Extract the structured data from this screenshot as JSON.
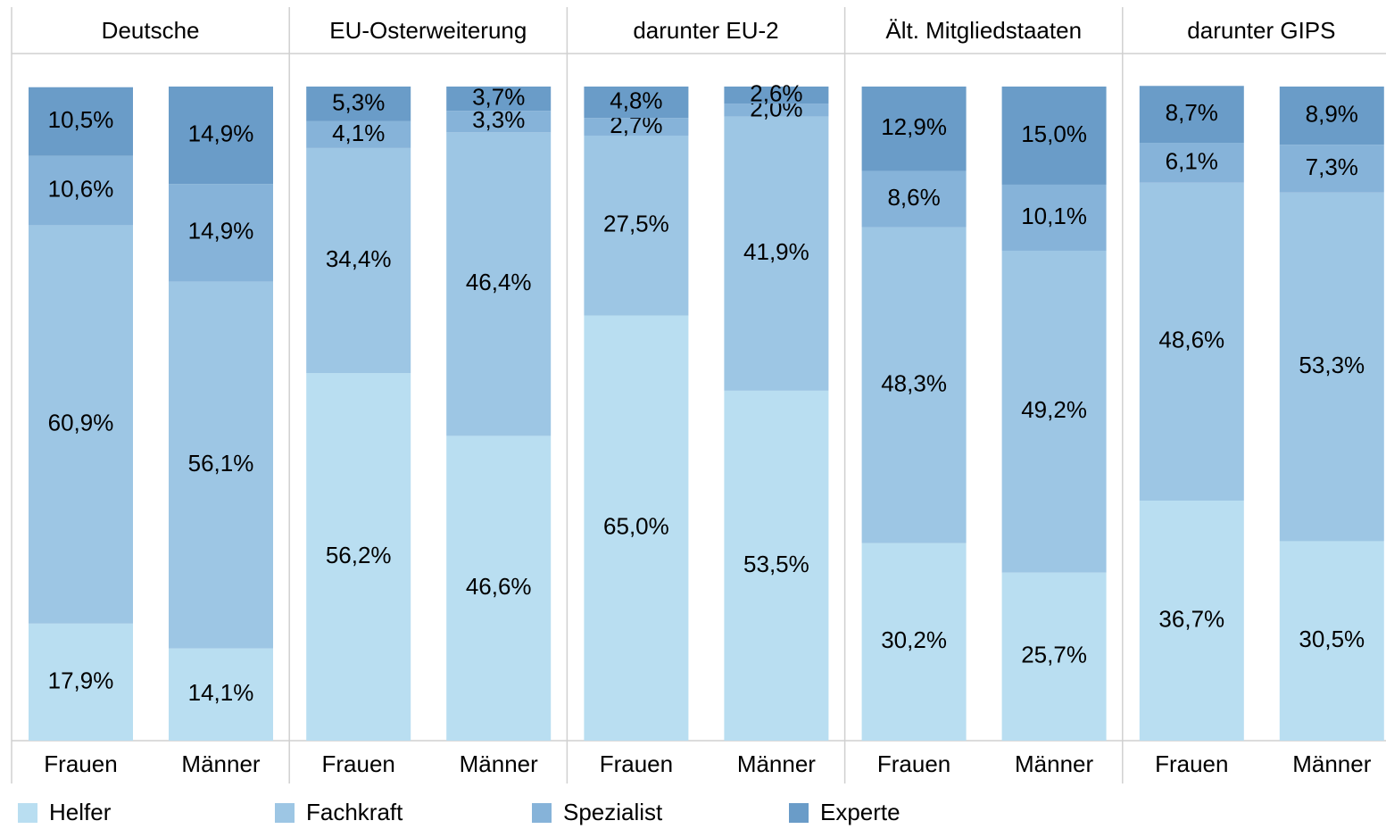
{
  "chart_data": {
    "type": "stacked_bar",
    "groups": [
      "Deutsche",
      "EU-Osterweiterung",
      "darunter EU-2",
      "Ält. Mitgliedstaaten",
      "darunter GIPS"
    ],
    "categories": [
      "Frauen",
      "Männer",
      "Frauen",
      "Männer",
      "Frauen",
      "Männer",
      "Frauen",
      "Männer",
      "Frauen",
      "Männer"
    ],
    "ylim": [
      0,
      100
    ],
    "legend": "bottom",
    "series": [
      {
        "name": "Helfer",
        "color": "#b9def1",
        "values": [
          17.9,
          14.1,
          56.2,
          46.6,
          65.0,
          53.5,
          30.2,
          25.7,
          36.7,
          30.5
        ],
        "value_labels": [
          "17,9%",
          "14,1%",
          "56,2%",
          "46,6%",
          "65,0%",
          "53,5%",
          "30,2%",
          "25,7%",
          "36,7%",
          "30,5%"
        ]
      },
      {
        "name": "Fachkraft",
        "color": "#9dc6e4",
        "values": [
          60.9,
          56.1,
          34.4,
          46.4,
          27.5,
          41.9,
          48.3,
          49.2,
          48.6,
          53.3
        ],
        "value_labels": [
          "60,9%",
          "56,1%",
          "34,4%",
          "46,4%",
          "27,5%",
          "41,9%",
          "48,3%",
          "49,2%",
          "48,6%",
          "53,3%"
        ]
      },
      {
        "name": "Spezialist",
        "color": "#86b3d9",
        "values": [
          10.6,
          14.9,
          4.1,
          3.3,
          2.7,
          2.0,
          8.6,
          10.1,
          6.1,
          7.3
        ],
        "value_labels": [
          "10,6%",
          "14,9%",
          "4,1%",
          "3,3%",
          "2,7%",
          "2,0%",
          "8,6%",
          "10,1%",
          "6,1%",
          "7,3%"
        ]
      },
      {
        "name": "Experte",
        "color": "#6a9cc8",
        "values": [
          10.5,
          14.9,
          5.3,
          3.7,
          4.8,
          2.6,
          12.9,
          15.0,
          8.7,
          8.9
        ],
        "value_labels": [
          "10,5%",
          "14,9%",
          "5,3%",
          "3,7%",
          "4,8%",
          "2,6%",
          "12,9%",
          "15,0%",
          "8,7%",
          "8,9%"
        ]
      }
    ]
  }
}
